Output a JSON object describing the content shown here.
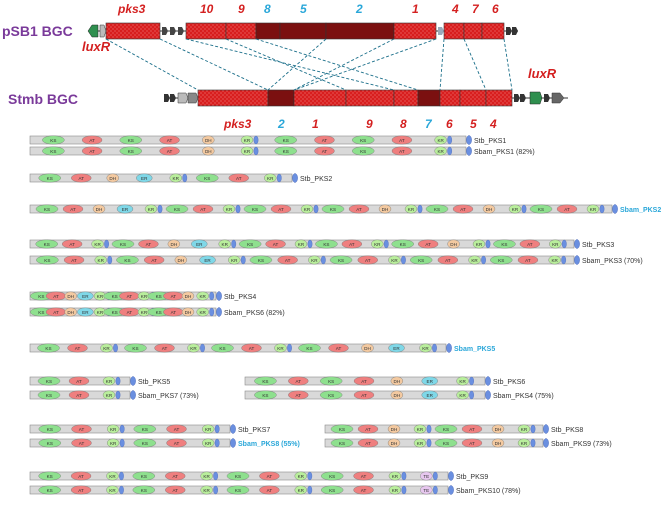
{
  "bgc": {
    "top_title": "pSB1 BGC",
    "bottom_title": "Stmb BGC",
    "lux_top": "luxR",
    "lux_bottom": "luxR",
    "top_gene_labels": [
      {
        "text": "pks3",
        "color": "red"
      },
      {
        "text": "10",
        "color": "red"
      },
      {
        "text": "9",
        "color": "red"
      },
      {
        "text": "8",
        "color": "cyan"
      },
      {
        "text": "5",
        "color": "cyan"
      },
      {
        "text": "2",
        "color": "cyan"
      },
      {
        "text": "1",
        "color": "red"
      },
      {
        "text": "4",
        "color": "red"
      },
      {
        "text": "7",
        "color": "red"
      },
      {
        "text": "6",
        "color": "red"
      }
    ],
    "bottom_gene_labels": [
      {
        "text": "pks3",
        "color": "red"
      },
      {
        "text": "2",
        "color": "cyan"
      },
      {
        "text": "1",
        "color": "red"
      },
      {
        "text": "9",
        "color": "red"
      },
      {
        "text": "8",
        "color": "red"
      },
      {
        "text": "7",
        "color": "cyan"
      },
      {
        "text": "6",
        "color": "red"
      },
      {
        "text": "5",
        "color": "red"
      },
      {
        "text": "4",
        "color": "red"
      }
    ]
  },
  "colors": {
    "red_label": "#d42020",
    "cyan_label": "#2aa7d9",
    "purple_title": "#7a3a9a",
    "gene_red": "#d81e1e",
    "gene_dark": "#7b1010",
    "ks": "#8ee08e",
    "at": "#ef7f7f",
    "dh": "#f3c9a0",
    "er": "#7fd8e8",
    "kr": "#b9ee9c",
    "te": "#e7c7ef",
    "acp": "#6a8fe0"
  },
  "proteins": [
    {
      "label": "Stb_PKS1",
      "color": "dark",
      "domains": [
        "KS",
        "AT",
        "KS",
        "AT",
        "DH",
        "KR",
        "KS",
        "AT",
        "KS",
        "AT",
        "KR"
      ]
    },
    {
      "label": "Sbam_PKS1 (82%)",
      "color": "dark",
      "domains": [
        "KS",
        "AT",
        "KS",
        "AT",
        "DH",
        "KR",
        "KS",
        "AT",
        "KS",
        "AT",
        "KR"
      ]
    },
    {
      "label": "Stb_PKS2",
      "color": "dark",
      "domains": [
        "KS",
        "AT",
        "DH",
        "ER",
        "KR",
        "KS",
        "AT",
        "KR"
      ]
    },
    {
      "label": "Sbam_PKS2",
      "color": "cyan",
      "domains": [
        "KS",
        "AT",
        "DH",
        "ER",
        "KR",
        "KS",
        "AT",
        "KR",
        "KS",
        "AT",
        "KR",
        "KS",
        "AT",
        "DH",
        "KR",
        "KS",
        "AT",
        "DH",
        "KR",
        "KS",
        "AT",
        "KR"
      ]
    },
    {
      "label": "Stb_PKS3",
      "color": "dark",
      "domains": [
        "KS",
        "AT",
        "KR",
        "KS",
        "AT",
        "DH",
        "ER",
        "KR",
        "KS",
        "AT",
        "KR",
        "KS",
        "AT",
        "KR",
        "KS",
        "AT",
        "DH",
        "KR",
        "KS",
        "AT",
        "KR"
      ]
    },
    {
      "label": "Sbam_PKS3 (70%)",
      "color": "dark",
      "domains": [
        "KS",
        "AT",
        "KR",
        "KS",
        "AT",
        "DH",
        "ER",
        "KR",
        "KS",
        "AT",
        "KR",
        "KS",
        "AT",
        "KR",
        "KS",
        "AT",
        "KR",
        "KS",
        "AT",
        "KR"
      ]
    },
    {
      "label": "Stb_PKS4",
      "color": "dark",
      "domains": [
        "KS",
        "AT",
        "DH",
        "ER",
        "KR",
        "KS",
        "AT",
        "KR",
        "KS",
        "AT",
        "DH",
        "KR"
      ]
    },
    {
      "label": "Sbam_PKS6 (82%)",
      "color": "dark",
      "domains": [
        "KS",
        "AT",
        "DH",
        "ER",
        "KR",
        "KS",
        "AT",
        "KR",
        "KS",
        "AT",
        "DH",
        "KR"
      ]
    },
    {
      "label": "Sbam_PKS5",
      "color": "cyan",
      "domains": [
        "KS",
        "AT",
        "KR",
        "KS",
        "AT",
        "KR",
        "KS",
        "AT",
        "KR",
        "KS",
        "AT",
        "DH",
        "ER",
        "KR"
      ]
    },
    {
      "label": "Stb_PKS5",
      "color": "dark",
      "domains": [
        "KS",
        "AT",
        "KR"
      ]
    },
    {
      "label": "Sbam_PKS7 (73%)",
      "color": "dark",
      "domains": [
        "KS",
        "AT",
        "KR"
      ]
    },
    {
      "label": "Stb_PKS6",
      "color": "dark",
      "domains": [
        "KS",
        "AT",
        "KS",
        "AT",
        "DH",
        "ER",
        "KR"
      ]
    },
    {
      "label": "Sbam_PKS4 (75%)",
      "color": "dark",
      "domains": [
        "KS",
        "AT",
        "KS",
        "AT",
        "DH",
        "ER",
        "KR"
      ]
    },
    {
      "label": "Stb_PKS7",
      "color": "dark",
      "domains": [
        "KS",
        "AT",
        "KR",
        "KS",
        "AT",
        "KR"
      ]
    },
    {
      "label": "Sbam_PKS8 (55%)",
      "color": "cyan",
      "domains": [
        "KS",
        "AT",
        "KR",
        "KS",
        "AT",
        "KR"
      ]
    },
    {
      "label": "Stb_PKS8",
      "color": "dark",
      "domains": [
        "KS",
        "AT",
        "DH",
        "KR",
        "KS",
        "AT",
        "DH",
        "KR"
      ]
    },
    {
      "label": "Sbam_PKS9 (73%)",
      "color": "dark",
      "domains": [
        "KS",
        "AT",
        "DH",
        "KR",
        "KS",
        "AT",
        "DH",
        "KR"
      ]
    },
    {
      "label": "Stb_PKS9",
      "color": "dark",
      "domains": [
        "KS",
        "AT",
        "KR",
        "KS",
        "AT",
        "KR",
        "KS",
        "AT",
        "KR",
        "KS",
        "AT",
        "KR",
        "TE"
      ]
    },
    {
      "label": "Sbam_PKS10 (78%)",
      "color": "dark",
      "domains": [
        "KS",
        "AT",
        "KR",
        "KS",
        "AT",
        "KR",
        "KS",
        "AT",
        "KR",
        "KS",
        "AT",
        "KR",
        "TE"
      ]
    }
  ]
}
